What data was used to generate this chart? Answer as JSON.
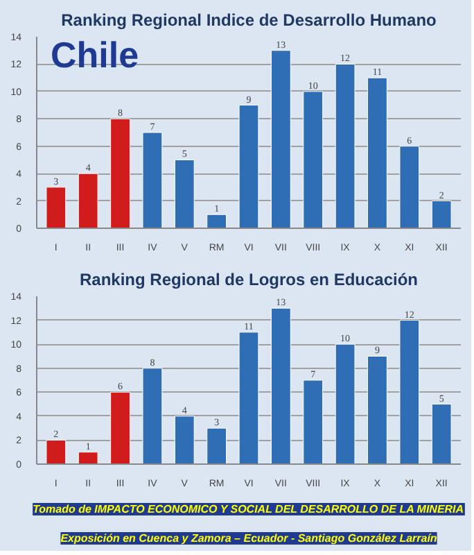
{
  "chart_data": [
    {
      "type": "bar",
      "title": "Ranking Regional Indice de Desarrollo Humano",
      "categories": [
        "I",
        "II",
        "III",
        "IV",
        "V",
        "RM",
        "VI",
        "VII",
        "VIII",
        "IX",
        "X",
        "XI",
        "XII"
      ],
      "values": [
        3,
        4,
        8,
        7,
        5,
        1,
        9,
        13,
        10,
        12,
        11,
        6,
        2
      ],
      "colors": [
        "#d01c1c",
        "#d01c1c",
        "#d01c1c",
        "#2f6db5",
        "#2f6db5",
        "#2f6db5",
        "#2f6db5",
        "#2f6db5",
        "#2f6db5",
        "#2f6db5",
        "#2f6db5",
        "#2f6db5",
        "#2f6db5"
      ],
      "ylim": [
        0,
        14
      ],
      "yticks": [
        0,
        2,
        4,
        6,
        8,
        10,
        12,
        14
      ],
      "grid": "y",
      "data_labels": true,
      "annotations": [
        "Chile"
      ]
    },
    {
      "type": "bar",
      "title": "Ranking Regional de Logros en Educación",
      "categories": [
        "I",
        "II",
        "III",
        "IV",
        "V",
        "RM",
        "VI",
        "VII",
        "VIII",
        "IX",
        "X",
        "XI",
        "XII"
      ],
      "values": [
        2,
        1,
        6,
        8,
        4,
        3,
        11,
        13,
        7,
        10,
        9,
        12,
        5
      ],
      "colors": [
        "#d01c1c",
        "#d01c1c",
        "#d01c1c",
        "#2f6db5",
        "#2f6db5",
        "#2f6db5",
        "#2f6db5",
        "#2f6db5",
        "#2f6db5",
        "#2f6db5",
        "#2f6db5",
        "#2f6db5",
        "#2f6db5"
      ],
      "ylim": [
        0,
        14
      ],
      "yticks": [
        0,
        2,
        4,
        6,
        8,
        10,
        12,
        14
      ],
      "grid": "y",
      "data_labels": true,
      "annotations": [
        "Tomado de IMPACTO ECONOMICO Y SOCIAL DEL DESARROLLO DE LA MINERIA",
        "Exposición en Cuenca y Zamora – Ecuador - Santiago González Larraín"
      ]
    }
  ]
}
